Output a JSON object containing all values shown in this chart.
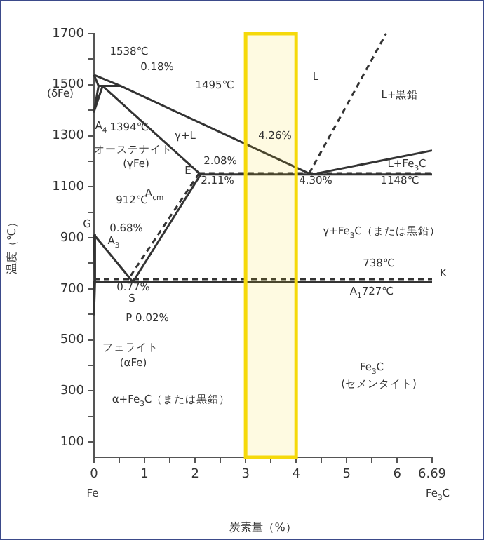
{
  "chart_data": {
    "type": "line",
    "xlabel": "炭素量（%）",
    "ylabel": "温度（℃）",
    "xlim": [
      0,
      6.69
    ],
    "ylim": [
      40,
      1700
    ],
    "xticks": [
      0,
      {
        "value": 0.5,
        "label": null
      },
      1,
      {
        "value": 1.5,
        "label": null
      },
      2,
      {
        "value": 2.5,
        "label": null
      },
      3,
      {
        "value": 3.5,
        "label": null
      },
      4,
      {
        "value": 4.5,
        "label": null
      },
      5,
      {
        "value": 5.5,
        "label": null
      },
      6,
      6.69
    ],
    "yticks": [
      100,
      {
        "value": 200,
        "label": null
      },
      300,
      {
        "value": 400,
        "label": null
      },
      500,
      {
        "value": 600,
        "label": null
      },
      700,
      {
        "value": 800,
        "label": null
      },
      900,
      {
        "value": 1000,
        "label": null
      },
      1100,
      {
        "value": 1200,
        "label": null
      },
      1300,
      {
        "value": 1400,
        "label": null
      },
      1500,
      {
        "value": 1600,
        "label": null
      },
      1700
    ],
    "grid": false,
    "legend": false,
    "line_style": "solid",
    "series": [
      {
        "color": "#333333",
        "x": [
          0,
          0.53,
          4.3
        ],
        "values": [
          1538,
          1495,
          1148
        ]
      },
      {
        "color": "#333333",
        "x": [
          0,
          0.09,
          0.53
        ],
        "values": [
          1538,
          1495,
          1495
        ]
      },
      {
        "color": "#333333",
        "x": [
          0.17,
          2.11,
          6.69
        ],
        "values": [
          1495,
          1148,
          1148
        ]
      },
      {
        "color": "#333333",
        "x": [
          0.09,
          0,
          0.17
        ],
        "values": [
          1495,
          1394,
          1495
        ]
      },
      {
        "color": "#333333",
        "x": [
          2.11,
          0.77
        ],
        "values": [
          1148,
          727
        ]
      },
      {
        "color": "#333333",
        "x": [
          0,
          0.77
        ],
        "values": [
          912,
          727
        ]
      },
      {
        "color": "#333333",
        "x": [
          0,
          0.02,
          6.69
        ],
        "values": [
          912,
          727,
          727
        ]
      },
      {
        "color": "#333333",
        "x": [
          0.02,
          0
        ],
        "values": [
          727,
          600
        ]
      },
      {
        "color": "#333333",
        "x": [
          4.3,
          6.69
        ],
        "values": [
          1148,
          1242
        ]
      },
      {
        "color": "#333333",
        "line_style": "dashed",
        "x": [
          2.08,
          6.69
        ],
        "values": [
          1153,
          1153
        ]
      },
      {
        "color": "#333333",
        "line_style": "dashed",
        "x": [
          2.08,
          0.68
        ],
        "values": [
          1153,
          738
        ]
      },
      {
        "color": "#333333",
        "line_style": "dashed",
        "x": [
          0,
          6.69
        ],
        "values": [
          738,
          738
        ]
      },
      {
        "color": "#333333",
        "line_style": "dashed",
        "x": [
          4.26,
          5.78
        ],
        "values": [
          1153,
          1700
        ]
      }
    ],
    "bands": [
      {
        "axis": "x",
        "from": 3,
        "to": 4,
        "color": "#f5d90a"
      }
    ],
    "annotations": [
      "1538℃",
      "0.18%",
      "1495℃",
      "(δFe)",
      "A$_{4}$",
      "1394℃",
      "オーステナイト",
      "(γFe)",
      "γ+L",
      "L",
      "L+黒鉛",
      "4.26%",
      "L+Fe$_{3}$C",
      "2.08%",
      "2.11%",
      "E",
      "4.30%",
      "1148℃",
      "A$_{cm}$",
      "912℃",
      "G",
      "0.68%",
      "A$_{3}$",
      "γ+Fe$_{3}$C（または黒鉛）",
      "738℃",
      "K",
      "A$_{1}$727℃",
      "0.77%",
      "S",
      "P 0.02%",
      "フェライト",
      "(αFe)",
      "α+Fe$_{3}$C（または黒鉛）",
      "Fe$_{3}$C",
      "(セメンタイト)",
      "Fe",
      "Fe$_{3}$C"
    ]
  }
}
